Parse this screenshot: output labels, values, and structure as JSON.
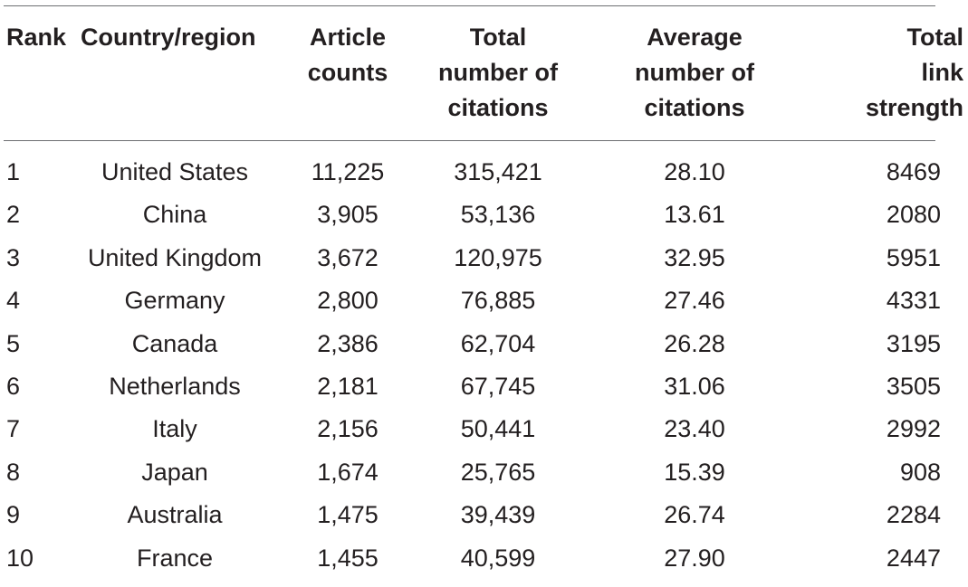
{
  "table": {
    "headers": [
      "Rank",
      "Country/region",
      "Article\ncounts",
      "Total\nnumber of\ncitations",
      "Average\nnumber of\ncitations",
      "Total\nlink\nstrength"
    ],
    "rows": [
      [
        "1",
        "United States",
        "11,225",
        "315,421",
        "28.10",
        "8469"
      ],
      [
        "2",
        "China",
        "3,905",
        "53,136",
        "13.61",
        "2080"
      ],
      [
        "3",
        "United Kingdom",
        "3,672",
        "120,975",
        "32.95",
        "5951"
      ],
      [
        "4",
        "Germany",
        "2,800",
        "76,885",
        "27.46",
        "4331"
      ],
      [
        "5",
        "Canada",
        "2,386",
        "62,704",
        "26.28",
        "3195"
      ],
      [
        "6",
        "Netherlands",
        "2,181",
        "67,745",
        "31.06",
        "3505"
      ],
      [
        "7",
        "Italy",
        "2,156",
        "50,441",
        "23.40",
        "2992"
      ],
      [
        "8",
        "Japan",
        "1,674",
        "25,765",
        "15.39",
        "908"
      ],
      [
        "9",
        "Australia",
        "1,475",
        "39,439",
        "26.74",
        "2284"
      ],
      [
        "10",
        "France",
        "1,455",
        "40,599",
        "27.90",
        "2447"
      ]
    ]
  }
}
